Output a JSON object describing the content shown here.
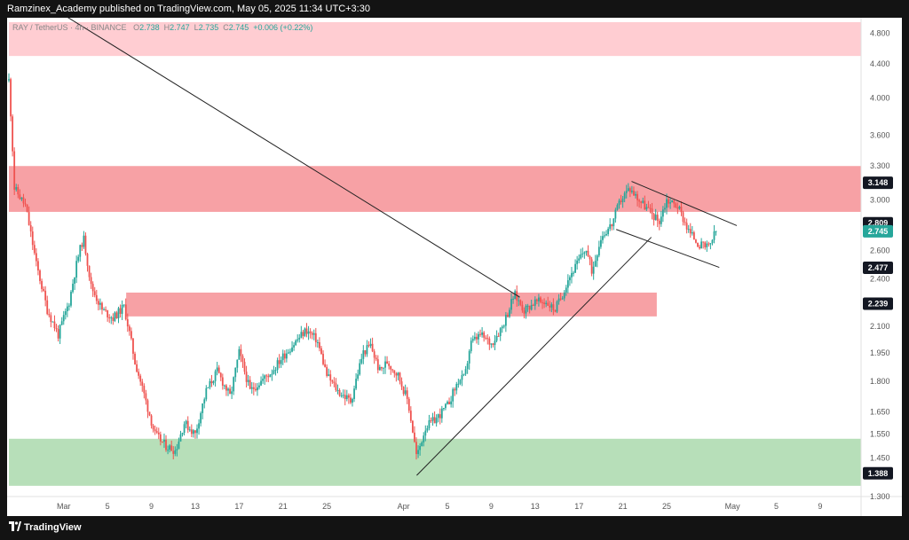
{
  "header": {
    "title": "Ramzinex_Academy published on TradingView.com, May 05, 2025 11:34 UTC+3:30"
  },
  "ohlc": {
    "symbol": "RAY / TetherUS · 4h · BINANCE",
    "o_label": "O",
    "o": "2.738",
    "h_label": "H",
    "h": "2.747",
    "l_label": "L",
    "l": "2.735",
    "c_label": "C",
    "c": "2.745",
    "change": "+0.006 (+0.22%)"
  },
  "footer": {
    "brand": "TradingView"
  },
  "colors": {
    "up": "#26a69a",
    "down": "#ef5350",
    "zone_red_light": "#ffcdd2",
    "zone_red": "#f7a1a5",
    "zone_green": "#b7dfb9"
  },
  "chart_data": {
    "type": "candlestick",
    "y_scale": "log",
    "ylim": [
      1.3,
      4.95
    ],
    "y_ticks": [
      "4.800",
      "4.400",
      "4.000",
      "3.600",
      "3.300",
      "3.000",
      "2.809",
      "2.600",
      "2.400",
      "2.239",
      "2.100",
      "1.950",
      "1.800",
      "1.650",
      "1.550",
      "1.450",
      "1.388",
      "1.300"
    ],
    "x_ticks": [
      "Mar",
      "5",
      "9",
      "13",
      "17",
      "21",
      "25",
      "Apr",
      "5",
      "9",
      "13",
      "17",
      "21",
      "25",
      "May",
      "5",
      "9"
    ],
    "price_labels": [
      {
        "value": "3.148",
        "style": "dark"
      },
      {
        "value": "2.809",
        "style": "dark"
      },
      {
        "value": "2.745",
        "style": "current"
      },
      {
        "value": "2.477",
        "style": "dark"
      },
      {
        "value": "2.239",
        "style": "dark"
      },
      {
        "value": "1.388",
        "style": "dark"
      }
    ],
    "zones": [
      {
        "low": 4.5,
        "high": 4.95,
        "color": "red_light",
        "from": 0,
        "to": "end"
      },
      {
        "low": 2.9,
        "high": 3.3,
        "color": "red",
        "from": 0,
        "to": "end"
      },
      {
        "low": 2.16,
        "high": 2.31,
        "color": "red",
        "from": 10.7,
        "to": 59.1
      },
      {
        "low": 1.34,
        "high": 1.53,
        "color": "green",
        "from": 0,
        "to": "end"
      }
    ],
    "trendlines": [
      {
        "p1": [
          3.5,
          5.2
        ],
        "p2": [
          46.6,
          2.28
        ]
      },
      {
        "p1": [
          37.2,
          1.38
        ],
        "p2": [
          58.6,
          2.7
        ]
      },
      {
        "p1": [
          56.8,
          3.16
        ],
        "p2": [
          66.4,
          2.79
        ]
      },
      {
        "p1": [
          55.4,
          2.76
        ],
        "p2": [
          64.8,
          2.48
        ]
      }
    ],
    "anchors": [
      [
        0,
        4.2
      ],
      [
        0.5,
        3.1
      ],
      [
        1.5,
        2.95
      ],
      [
        2.5,
        2.5
      ],
      [
        3.5,
        2.2
      ],
      [
        4.5,
        2.05
      ],
      [
        5.5,
        2.25
      ],
      [
        6.3,
        2.55
      ],
      [
        6.8,
        2.7
      ],
      [
        7.5,
        2.35
      ],
      [
        8.5,
        2.2
      ],
      [
        9.5,
        2.15
      ],
      [
        10.5,
        2.22
      ],
      [
        11.5,
        1.9
      ],
      [
        12.5,
        1.7
      ],
      [
        13.3,
        1.55
      ],
      [
        14.3,
        1.5
      ],
      [
        15.2,
        1.48
      ],
      [
        16,
        1.6
      ],
      [
        17,
        1.55
      ],
      [
        18,
        1.75
      ],
      [
        19,
        1.85
      ],
      [
        20.2,
        1.72
      ],
      [
        21,
        1.95
      ],
      [
        22,
        1.75
      ],
      [
        23,
        1.8
      ],
      [
        24,
        1.85
      ],
      [
        25,
        1.93
      ],
      [
        26,
        2.0
      ],
      [
        27.1,
        2.08
      ],
      [
        28.1,
        2.02
      ],
      [
        29,
        1.83
      ],
      [
        30,
        1.75
      ],
      [
        31.2,
        1.7
      ],
      [
        32.3,
        1.95
      ],
      [
        33,
        1.99
      ],
      [
        33.8,
        1.85
      ],
      [
        34.5,
        1.9
      ],
      [
        35.5,
        1.83
      ],
      [
        36.4,
        1.7
      ],
      [
        37.2,
        1.45
      ],
      [
        38,
        1.58
      ],
      [
        39,
        1.62
      ],
      [
        40,
        1.68
      ],
      [
        41,
        1.8
      ],
      [
        41.6,
        1.82
      ],
      [
        42.1,
        2.0
      ],
      [
        43,
        2.05
      ],
      [
        44,
        2.0
      ],
      [
        45,
        2.1
      ],
      [
        45.6,
        2.2
      ],
      [
        46.1,
        2.3
      ],
      [
        47,
        2.2
      ],
      [
        48,
        2.25
      ],
      [
        49,
        2.25
      ],
      [
        49.8,
        2.2
      ],
      [
        50.5,
        2.3
      ],
      [
        51,
        2.4
      ],
      [
        51.8,
        2.5
      ],
      [
        52.6,
        2.62
      ],
      [
        53.2,
        2.45
      ],
      [
        54,
        2.7
      ],
      [
        55,
        2.8
      ],
      [
        55.8,
        3.0
      ],
      [
        56.6,
        3.1
      ],
      [
        57.5,
        3.0
      ],
      [
        58.5,
        2.9
      ],
      [
        59.3,
        2.82
      ],
      [
        60,
        3.0
      ],
      [
        61,
        2.95
      ],
      [
        62,
        2.75
      ],
      [
        63,
        2.64
      ],
      [
        63.8,
        2.62
      ],
      [
        64.5,
        2.745
      ]
    ]
  }
}
